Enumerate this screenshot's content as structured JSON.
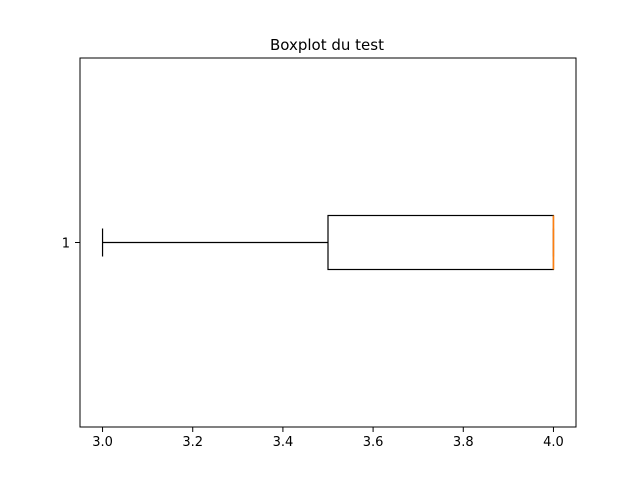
{
  "chart_data": {
    "type": "boxplot",
    "title": "Boxplot du test",
    "xlabel": "",
    "ylabel": "",
    "orientation": "horizontal",
    "xlim": [
      2.95,
      4.05
    ],
    "x_ticks": [
      3.0,
      3.2,
      3.4,
      3.6,
      3.8,
      4.0
    ],
    "x_tick_labels": [
      "3.0",
      "3.2",
      "3.4",
      "3.6",
      "3.8",
      "4.0"
    ],
    "y_ticks": [
      1
    ],
    "y_tick_labels": [
      "1"
    ],
    "grid": false,
    "series": [
      {
        "position": 1,
        "whisker_low": 3.0,
        "q1": 3.5,
        "median": 4.0,
        "q3": 4.0,
        "whisker_high": 4.0
      }
    ],
    "colors": {
      "box": "#000000",
      "median": "#ff7f0e",
      "axes": "#000000",
      "background": "#ffffff"
    }
  }
}
